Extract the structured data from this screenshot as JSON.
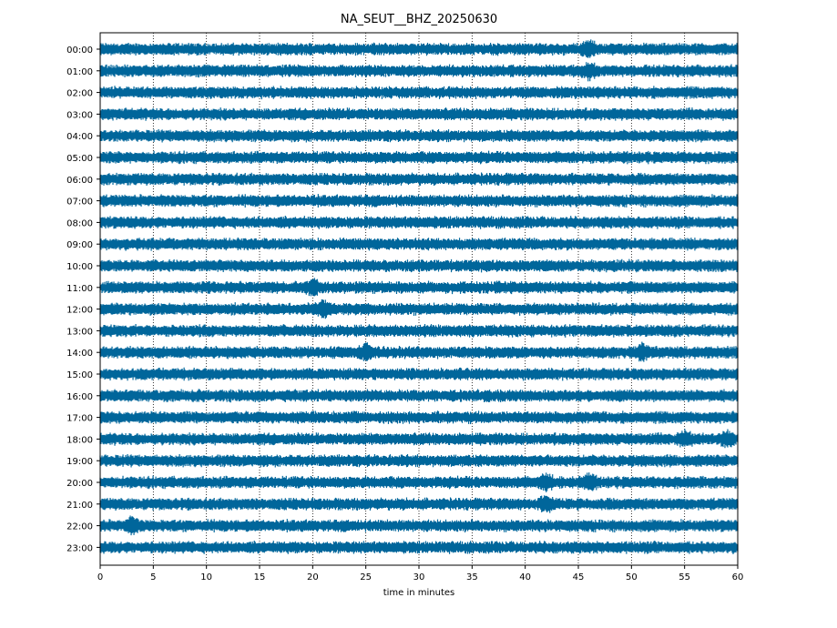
{
  "chart_data": {
    "type": "line",
    "title": "NA_SEUT__BHZ_20250630",
    "xlabel": "time in minutes",
    "ylabel": "",
    "xlim": [
      0,
      60
    ],
    "x_ticks": [
      "0",
      "5",
      "10",
      "15",
      "20",
      "25",
      "30",
      "35",
      "40",
      "45",
      "50",
      "55",
      "60"
    ],
    "row_labels": [
      "00:00",
      "01:00",
      "02:00",
      "03:00",
      "04:00",
      "05:00",
      "06:00",
      "07:00",
      "08:00",
      "09:00",
      "10:00",
      "11:00",
      "12:00",
      "13:00",
      "14:00",
      "15:00",
      "16:00",
      "17:00",
      "18:00",
      "19:00",
      "20:00",
      "21:00",
      "22:00",
      "23:00"
    ],
    "grid": "vertical dotted lines at every 5 minutes",
    "legend": "none",
    "series_color": "#00669b",
    "trace_count": 24,
    "trace_interval_minutes": 60,
    "notable_events": [
      {
        "row": "00:00",
        "minute": 46
      },
      {
        "row": "01:00",
        "minute": 46
      },
      {
        "row": "11:00",
        "minute": 20
      },
      {
        "row": "12:00",
        "minute": 21
      },
      {
        "row": "14:00",
        "minute": 25
      },
      {
        "row": "14:00",
        "minute": 51
      },
      {
        "row": "18:00",
        "minute": 55
      },
      {
        "row": "18:00",
        "minute": 59
      },
      {
        "row": "20:00",
        "minute": 42
      },
      {
        "row": "20:00",
        "minute": 46
      },
      {
        "row": "21:00",
        "minute": 42
      },
      {
        "row": "22:00",
        "minute": 3
      }
    ]
  }
}
